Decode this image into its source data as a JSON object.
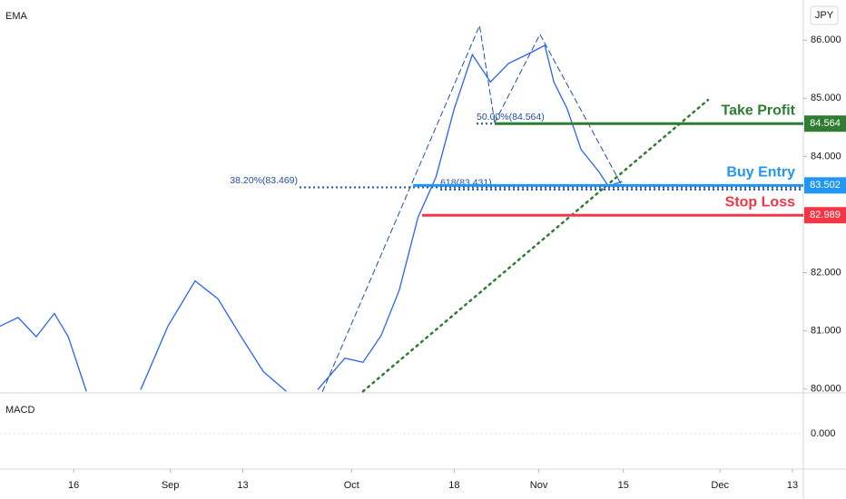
{
  "chart_data": {
    "type": "line",
    "currency": "JPY",
    "x": [
      3.8,
      6.8,
      9.8,
      12.8,
      15.1,
      18.1,
      22,
      27.1,
      31.6,
      36.1,
      39.9,
      43.6,
      47.4,
      51.2,
      54,
      56.4,
      60.9,
      63.9,
      66.9,
      69.9,
      73,
      76,
      79,
      82,
      85,
      88,
      91,
      94,
      95.5,
      97.7,
      100,
      103,
      104.5,
      106.8
    ],
    "series": [
      {
        "name": "EMA",
        "color": "#2962ff",
        "values": [
          81.08,
          81.23,
          80.9,
          81.3,
          80.9,
          79.96,
          null,
          79.99,
          81.08,
          81.86,
          81.55,
          80.92,
          80.3,
          79.96,
          null,
          79.99,
          80.53,
          80.46,
          80.92,
          81.7,
          82.95,
          83.65,
          84.82,
          85.75,
          85.28,
          85.6,
          85.75,
          85.91,
          85.28,
          84.82,
          84.12,
          83.73,
          83.49,
          83.57
        ]
      }
    ],
    "xlim": [
      3.8,
      136.8
    ],
    "ylim": [
      79.95,
      86.69
    ],
    "xticks": [
      {
        "value": 16,
        "label": "16"
      },
      {
        "value": 32,
        "label": "Sep"
      },
      {
        "value": 44,
        "label": "13"
      },
      {
        "value": 62,
        "label": "Oct"
      },
      {
        "value": 79,
        "label": "18"
      },
      {
        "value": 93,
        "label": "Nov"
      },
      {
        "value": 107,
        "label": "15"
      },
      {
        "value": 123,
        "label": "Dec"
      },
      {
        "value": 135,
        "label": "13"
      }
    ],
    "yticks": [
      {
        "value": 86,
        "label": "86.000"
      },
      {
        "value": 85,
        "label": "85.000"
      },
      {
        "value": 84,
        "label": "84.000"
      },
      {
        "value": 82,
        "label": "82.000"
      },
      {
        "value": 81,
        "label": "81.000"
      },
      {
        "value": 80,
        "label": "80.000"
      }
    ],
    "levels": [
      {
        "name": "Take Profit",
        "value": 84.564,
        "value_label": "84.564",
        "color": "#2e7d32",
        "start": 85.7
      },
      {
        "name": "Buy Entry",
        "value": 83.502,
        "value_label": "83.502",
        "color": "#2196f3",
        "start": 72.2
      },
      {
        "name": "Stop Loss",
        "value": 82.989,
        "value_label": "82.989",
        "color": "#f23645",
        "start": 73.7
      }
    ],
    "fib_labels": [
      {
        "label": "38.20%(83.469)",
        "value": 83.469,
        "start": 53.4
      },
      {
        "label": "618(83.431)",
        "value": 83.431,
        "start": 76.7
      },
      {
        "label": "50.00%(84.564)",
        "value": 84.564,
        "start": 82.7
      }
    ],
    "trend_lines": [
      {
        "color": "#2e7d32",
        "style": "dotted",
        "x": [
          63.9,
          121
        ],
        "y": [
          79.96,
          84.97
        ]
      },
      {
        "color": "#1e4fa8",
        "style": "dashed",
        "x": [
          57.2,
          83.2,
          85.7
        ],
        "y": [
          79.96,
          86.25,
          84.58
        ]
      },
      {
        "color": "#1e4fa8",
        "style": "dashed",
        "x": [
          85.7,
          93.2,
          106.8
        ],
        "y": [
          84.58,
          86.1,
          83.49
        ]
      }
    ],
    "macd": {
      "title": "MACD",
      "yticks": [
        {
          "value": 0,
          "label": "0.000"
        }
      ]
    }
  }
}
